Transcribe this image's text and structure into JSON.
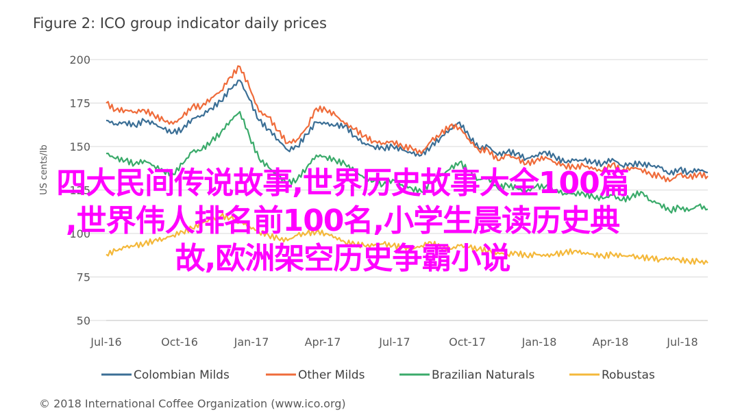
{
  "chart_data": {
    "type": "line",
    "title": "Figure 2: ICO group indicator daily prices",
    "ylabel": "US cents/lb",
    "ylim": [
      50,
      200
    ],
    "yticks": [
      50,
      75,
      100,
      125,
      150,
      175,
      200
    ],
    "x_ticks": [
      "Jul-16",
      "Oct-16",
      "Jan-17",
      "Apr-17",
      "Jul-17",
      "Oct-17",
      "Jan-18",
      "Apr-18",
      "Jul-18"
    ],
    "grid": true,
    "legend_position": "bottom",
    "series": [
      {
        "name": "Colombian Milds",
        "color": "#3a6e95",
        "values": [
          165,
          163,
          164,
          162,
          165,
          163,
          160,
          158,
          160,
          166,
          168,
          172,
          176,
          183,
          188,
          177,
          165,
          160,
          154,
          148,
          150,
          157,
          164,
          163,
          162,
          162,
          156,
          152,
          150,
          149,
          150,
          148,
          146,
          145,
          150,
          155,
          160,
          164,
          156,
          149,
          150,
          145,
          147,
          146,
          143,
          145,
          147,
          144,
          141,
          142,
          142,
          141,
          140,
          143,
          139,
          140,
          140,
          139,
          138,
          134,
          137,
          135,
          137,
          135
        ]
      },
      {
        "name": "Other Milds",
        "color": "#ef6b3a",
        "values": [
          175,
          171,
          171,
          170,
          171,
          168,
          165,
          163,
          167,
          173,
          173,
          178,
          182,
          190,
          196,
          184,
          170,
          167,
          159,
          152,
          154,
          161,
          172,
          171,
          168,
          163,
          160,
          156,
          153,
          152,
          153,
          150,
          149,
          146,
          153,
          157,
          162,
          161,
          154,
          148,
          148,
          142,
          145,
          143,
          140,
          142,
          144,
          141,
          139,
          138,
          139,
          137,
          136,
          140,
          136,
          138,
          137,
          134,
          133,
          130,
          134,
          132,
          134,
          133
        ]
      },
      {
        "name": "Brazilian Naturals",
        "color": "#3aaa6a",
        "values": [
          146,
          143,
          142,
          140,
          142,
          139,
          136,
          134,
          140,
          147,
          148,
          153,
          158,
          165,
          170,
          156,
          143,
          138,
          133,
          129,
          131,
          138,
          145,
          144,
          142,
          140,
          136,
          132,
          130,
          128,
          131,
          128,
          126,
          124,
          129,
          133,
          137,
          141,
          136,
          131,
          132,
          126,
          128,
          126,
          124,
          127,
          127,
          125,
          123,
          123,
          123,
          121,
          120,
          122,
          119,
          121,
          124,
          119,
          117,
          113,
          115,
          113,
          116,
          114
        ]
      },
      {
        "name": "Robustas",
        "color": "#f4b83a",
        "values": [
          88,
          90,
          92,
          93,
          94,
          96,
          97,
          99,
          101,
          103,
          106,
          108,
          110,
          109,
          107,
          104,
          101,
          99,
          97,
          96,
          99,
          100,
          101,
          100,
          98,
          95,
          94,
          93,
          93,
          94,
          93,
          92,
          91,
          93,
          95,
          92,
          91,
          93,
          92,
          91,
          90,
          89,
          88,
          89,
          87,
          88,
          87,
          88,
          89,
          90,
          89,
          88,
          87,
          88,
          87,
          87,
          86,
          86,
          85,
          86,
          85,
          84,
          84,
          83
        ]
      }
    ]
  },
  "overlay": {
    "line1": "四大民间传说故事,世界历史故事大全100篇",
    "line2": ",世界伟人排名前100名,小学生晨读历史典",
    "line3": "故,欧洲架空历史争霸小说"
  },
  "footer": {
    "text": "© 2018 International Coffee Organization (www.ico.org)"
  }
}
